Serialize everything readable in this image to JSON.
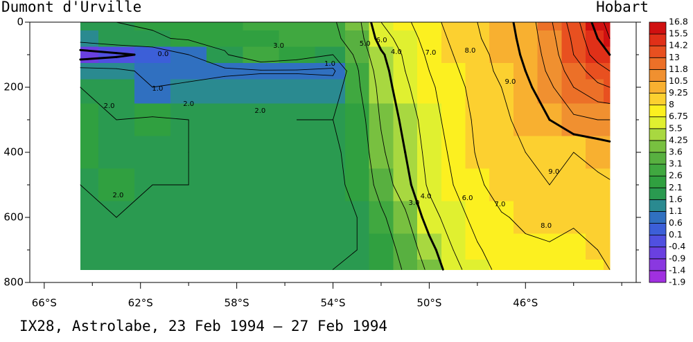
{
  "chart_data": {
    "type": "contour",
    "title": "IX28, Astrolabe, 23 Feb 1994 – 27 Feb 1994",
    "left_label": "Dumont d'Urville",
    "right_label": "Hobart",
    "x": [
      -64.5,
      -63,
      -61.5,
      -60,
      -58.5,
      -57,
      -55.5,
      -54,
      -53,
      -52,
      -51,
      -50,
      -49,
      -48,
      -47,
      -46,
      -45,
      -44,
      -43,
      -42.5
    ],
    "y": [
      0,
      50,
      100,
      150,
      200,
      300,
      400,
      500,
      600,
      700,
      760
    ],
    "z": [
      [
        1.9,
        2.0,
        2.1,
        2.2,
        2.4,
        2.6,
        2.8,
        2.9,
        3.6,
        6.0,
        6.8,
        7.6,
        8.4,
        9.0,
        9.6,
        10.4,
        11.8,
        13.5,
        15.5,
        16.5
      ],
      [
        1.5,
        1.8,
        1.9,
        2.1,
        2.3,
        2.5,
        2.7,
        2.8,
        3.4,
        5.5,
        6.5,
        7.4,
        8.2,
        8.9,
        9.5,
        10.3,
        11.6,
        13.2,
        15,
        16
      ],
      [
        -0.6,
        -0.2,
        0.2,
        1.0,
        1.9,
        2.9,
        2.5,
        2.0,
        3.2,
        4.8,
        6.2,
        7.2,
        8.0,
        8.7,
        9.3,
        10.2,
        11.4,
        13,
        14.5,
        15
      ],
      [
        1.4,
        1.2,
        0.8,
        0.6,
        0.8,
        0.9,
        0.9,
        0.8,
        2.9,
        4.5,
        6.0,
        7.0,
        7.8,
        8.6,
        9.2,
        10.0,
        11.2,
        12.5,
        13.5,
        14
      ],
      [
        2.0,
        1.8,
        1.0,
        1.2,
        1.4,
        1.5,
        1.5,
        1.5,
        2.8,
        4.3,
        5.8,
        6.8,
        7.6,
        8.4,
        9.0,
        9.7,
        10.8,
        12,
        12.8,
        13
      ],
      [
        2.1,
        2.0,
        2.1,
        2.0,
        1.9,
        1.9,
        2.0,
        2.0,
        2.4,
        4.1,
        5.3,
        6.6,
        7.4,
        8.2,
        8.8,
        9.3,
        10.0,
        10.8,
        11,
        11
      ],
      [
        2.1,
        2.0,
        2.0,
        2.0,
        1.9,
        1.9,
        1.9,
        1.9,
        2.2,
        3.8,
        5.0,
        6.4,
        7.2,
        8.1,
        8.7,
        9.0,
        9.2,
        9.0,
        9.3,
        9.5
      ],
      [
        2.0,
        2.1,
        2.0,
        2.0,
        1.9,
        1.9,
        1.9,
        1.9,
        2.1,
        3.4,
        4.6,
        6.2,
        7.0,
        7.8,
        8.5,
        8.9,
        9.0,
        8.7,
        8.8,
        8.9
      ],
      [
        1.9,
        2.0,
        1.9,
        1.9,
        1.9,
        1.9,
        1.9,
        1.9,
        2.0,
        2.8,
        3.8,
        5.5,
        6.6,
        7.3,
        7.9,
        8.2,
        8.3,
        8.1,
        8.3,
        8.4
      ],
      [
        1.8,
        1.9,
        1.9,
        1.9,
        1.9,
        1.9,
        1.9,
        1.9,
        2.0,
        2.5,
        3.3,
        4.6,
        6.0,
        6.9,
        7.4,
        7.8,
        7.9,
        7.8,
        8.0,
        8.1
      ],
      [
        1.8,
        1.9,
        1.9,
        1.9,
        1.9,
        1.9,
        1.9,
        2.0,
        2.0,
        2.4,
        3.1,
        4.2,
        5.6,
        6.7,
        7.2,
        7.6,
        7.8,
        7.7,
        7.9,
        8.0
      ]
    ],
    "xlim": [
      -66.6,
      -41.4
    ],
    "xticks": [
      {
        "value": -66,
        "label": "66°S"
      },
      {
        "value": -62,
        "label": "62°S"
      },
      {
        "value": -58,
        "label": "58°S"
      },
      {
        "value": -54,
        "label": "54°S"
      },
      {
        "value": -50,
        "label": "50°S"
      },
      {
        "value": -46,
        "label": "46°S"
      }
    ],
    "xminor": [
      -64,
      -60,
      -56,
      -52,
      -48,
      -44,
      -42
    ],
    "ylim": [
      0,
      800
    ],
    "yinvert": true,
    "yticks": [
      0,
      200,
      400,
      600,
      800
    ],
    "yminor": [
      100,
      300,
      500,
      700
    ],
    "colorbar": {
      "levels": [
        -1.9,
        -1.4,
        -0.9,
        -0.4,
        0.1,
        0.6,
        1.1,
        1.6,
        2.1,
        2.6,
        3.1,
        3.6,
        4.25,
        5.5,
        6.75,
        8,
        9.25,
        10.5,
        11.8,
        13,
        14.2,
        15.5,
        16.8
      ],
      "colors": [
        "#a030e0",
        "#8a38e0",
        "#6a40e0",
        "#5050e0",
        "#3c5fd8",
        "#3070c0",
        "#2a8a90",
        "#2a9a50",
        "#30a040",
        "#40a840",
        "#58b040",
        "#78c040",
        "#a8d840",
        "#e0f030",
        "#fcf020",
        "#fcd030",
        "#f8b030",
        "#f09030",
        "#ec7028",
        "#e85020",
        "#e03018",
        "#d01010"
      ]
    },
    "contour_levels": [
      0,
      1,
      2,
      3,
      4,
      5,
      6,
      7,
      8,
      9,
      10,
      11,
      12,
      13,
      14,
      15,
      16
    ],
    "heavy_levels": [
      0,
      5,
      10,
      15
    ],
    "contour_labels": [
      {
        "value": 0,
        "label": "0.0",
        "lat": -61.06,
        "depth": 98
      },
      {
        "value": 1,
        "label": "1.0",
        "lat": -61.29,
        "depth": 204
      },
      {
        "value": 3,
        "label": "3.0",
        "lat": -56.26,
        "depth": 72
      },
      {
        "value": 1,
        "label": "1.0",
        "lat": -54.13,
        "depth": 128
      },
      {
        "value": 5,
        "label": "5.0",
        "lat": -52.67,
        "depth": 66
      },
      {
        "value": 6,
        "label": "6.0",
        "lat": -51.98,
        "depth": 55
      },
      {
        "value": 4,
        "label": "4.0",
        "lat": -51.37,
        "depth": 92
      },
      {
        "value": 7,
        "label": "7.0",
        "lat": -49.94,
        "depth": 94
      },
      {
        "value": 8,
        "label": "8.0",
        "lat": -48.3,
        "depth": 87
      },
      {
        "value": 9,
        "label": "9.0",
        "lat": -46.63,
        "depth": 183
      },
      {
        "value": 2,
        "label": "2.0",
        "lat": -63.3,
        "depth": 257
      },
      {
        "value": 2,
        "label": "2.0",
        "lat": -60.0,
        "depth": 251
      },
      {
        "value": 2,
        "label": "2.0",
        "lat": -57.03,
        "depth": 272
      },
      {
        "value": 2,
        "label": "2.0",
        "lat": -62.93,
        "depth": 532
      },
      {
        "value": 9,
        "label": "9.0",
        "lat": -44.82,
        "depth": 460
      },
      {
        "value": 3,
        "label": "3.0",
        "lat": -50.63,
        "depth": 555
      },
      {
        "value": 4,
        "label": "4.0",
        "lat": -50.14,
        "depth": 535
      },
      {
        "value": 6,
        "label": "6.0",
        "lat": -48.41,
        "depth": 540
      },
      {
        "value": 7,
        "label": "7.0",
        "lat": -47.06,
        "depth": 560
      },
      {
        "value": 8,
        "label": "8.0",
        "lat": -45.14,
        "depth": 626
      }
    ]
  }
}
